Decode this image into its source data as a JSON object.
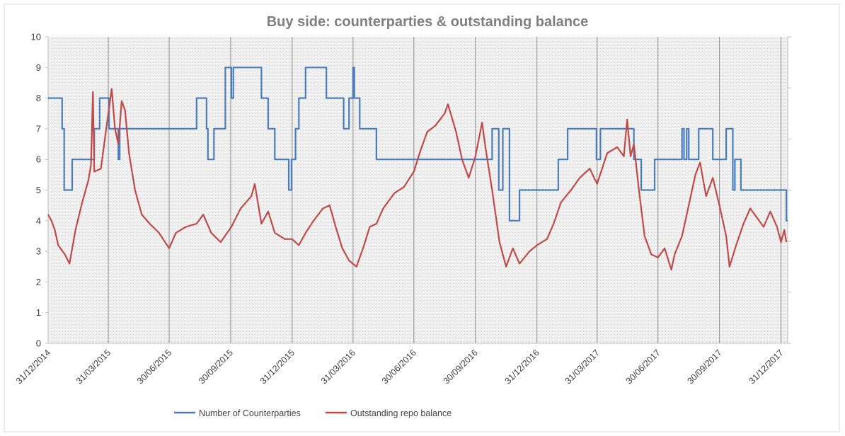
{
  "chart_data": {
    "type": "line",
    "title": "Buy side: counterparties & outstanding balance",
    "xlabel": "",
    "ylabel": "",
    "ylim": [
      0,
      10
    ],
    "yticks": [
      "0",
      "1",
      "2",
      "3",
      "4",
      "5",
      "6",
      "7",
      "8",
      "9",
      "10"
    ],
    "xticks": [
      "31/12/2014",
      "31/03/2015",
      "30/06/2015",
      "30/09/2015",
      "31/12/2015",
      "31/03/2016",
      "30/06/2016",
      "30/09/2016",
      "31/12/2016",
      "31/03/2017",
      "30/06/2017",
      "30/09/2017",
      "31/12/2017"
    ],
    "xlim": [
      "31/12/2014",
      "10/01/2018"
    ],
    "grid": "vertical lines at quarter ends",
    "legend_position": "bottom",
    "colors": {
      "counterparties": "#4a7ebb",
      "balance": "#be4b48",
      "plot_background": "#f2f2f2",
      "gridline": "#8c8c8c"
    },
    "series": [
      {
        "name": "Number of Counterparties",
        "color": "#4a7ebb",
        "step": true,
        "points": [
          [
            "31/12/2014",
            8
          ],
          [
            "21/01/2015",
            7
          ],
          [
            "24/01/2015",
            5
          ],
          [
            "05/02/2015",
            6
          ],
          [
            "10/03/2015",
            7
          ],
          [
            "18/03/2015",
            8
          ],
          [
            "01/04/2015",
            7
          ],
          [
            "15/04/2015",
            6
          ],
          [
            "17/04/2015",
            7
          ],
          [
            "10/08/2015",
            8
          ],
          [
            "25/08/2015",
            7
          ],
          [
            "27/08/2015",
            6
          ],
          [
            "05/09/2015",
            7
          ],
          [
            "22/09/2015",
            9
          ],
          [
            "01/10/2015",
            8
          ],
          [
            "04/10/2015",
            9
          ],
          [
            "15/11/2015",
            8
          ],
          [
            "25/11/2015",
            7
          ],
          [
            "05/12/2015",
            6
          ],
          [
            "26/12/2015",
            5
          ],
          [
            "30/12/2015",
            6
          ],
          [
            "05/01/2016",
            7
          ],
          [
            "10/01/2016",
            8
          ],
          [
            "20/01/2016",
            9
          ],
          [
            "20/02/2016",
            8
          ],
          [
            "17/03/2016",
            7
          ],
          [
            "25/03/2016",
            8
          ],
          [
            "31/03/2016",
            9
          ],
          [
            "02/04/2016",
            8
          ],
          [
            "10/04/2016",
            7
          ],
          [
            "05/05/2016",
            6
          ],
          [
            "01/10/2016",
            6
          ],
          [
            "25/10/2016",
            7
          ],
          [
            "04/11/2016",
            5
          ],
          [
            "10/11/2016",
            7
          ],
          [
            "20/11/2016",
            4
          ],
          [
            "05/12/2016",
            5
          ],
          [
            "01/02/2017",
            6
          ],
          [
            "15/02/2017",
            7
          ],
          [
            "30/03/2017",
            6
          ],
          [
            "05/04/2017",
            7
          ],
          [
            "25/05/2017",
            6
          ],
          [
            "05/06/2017",
            5
          ],
          [
            "25/06/2017",
            6
          ],
          [
            "05/08/2017",
            7
          ],
          [
            "08/08/2017",
            6
          ],
          [
            "12/08/2017",
            7
          ],
          [
            "15/08/2017",
            6
          ],
          [
            "30/08/2017",
            7
          ],
          [
            "20/09/2017",
            6
          ],
          [
            "10/10/2017",
            7
          ],
          [
            "20/10/2017",
            5
          ],
          [
            "23/10/2017",
            6
          ],
          [
            "01/11/2017",
            5
          ],
          [
            "08/01/2018",
            4
          ],
          [
            "10/01/2018",
            4
          ]
        ]
      },
      {
        "name": "Outstanding repo balance",
        "color": "#be4b48",
        "step": false,
        "points": [
          [
            "31/12/2014",
            4.2
          ],
          [
            "05/01/2015",
            4.0
          ],
          [
            "10/01/2015",
            3.7
          ],
          [
            "15/01/2015",
            3.2
          ],
          [
            "25/01/2015",
            2.9
          ],
          [
            "01/02/2015",
            2.6
          ],
          [
            "10/02/2015",
            3.7
          ],
          [
            "20/02/2015",
            4.6
          ],
          [
            "01/03/2015",
            5.3
          ],
          [
            "05/03/2015",
            5.8
          ],
          [
            "08/03/2015",
            8.2
          ],
          [
            "10/03/2015",
            5.6
          ],
          [
            "20/03/2015",
            5.7
          ],
          [
            "31/03/2015",
            7.5
          ],
          [
            "05/04/2015",
            8.3
          ],
          [
            "10/04/2015",
            7.0
          ],
          [
            "15/04/2015",
            6.5
          ],
          [
            "20/04/2015",
            7.9
          ],
          [
            "25/04/2015",
            7.6
          ],
          [
            "01/05/2015",
            6.2
          ],
          [
            "10/05/2015",
            5.0
          ],
          [
            "20/05/2015",
            4.2
          ],
          [
            "01/06/2015",
            3.9
          ],
          [
            "15/06/2015",
            3.6
          ],
          [
            "30/06/2015",
            3.1
          ],
          [
            "10/07/2015",
            3.6
          ],
          [
            "25/07/2015",
            3.8
          ],
          [
            "10/08/2015",
            3.9
          ],
          [
            "20/08/2015",
            4.2
          ],
          [
            "01/09/2015",
            3.6
          ],
          [
            "15/09/2015",
            3.3
          ],
          [
            "01/10/2015",
            3.8
          ],
          [
            "15/10/2015",
            4.4
          ],
          [
            "31/10/2015",
            4.8
          ],
          [
            "05/11/2015",
            5.2
          ],
          [
            "15/11/2015",
            3.9
          ],
          [
            "25/11/2015",
            4.3
          ],
          [
            "05/12/2015",
            3.6
          ],
          [
            "20/12/2015",
            3.4
          ],
          [
            "31/12/2015",
            3.4
          ],
          [
            "10/01/2016",
            3.2
          ],
          [
            "20/01/2016",
            3.6
          ],
          [
            "01/02/2016",
            4.0
          ],
          [
            "15/02/2016",
            4.4
          ],
          [
            "25/02/2016",
            4.5
          ],
          [
            "05/03/2016",
            3.8
          ],
          [
            "15/03/2016",
            3.1
          ],
          [
            "25/03/2016",
            2.7
          ],
          [
            "05/04/2016",
            2.5
          ],
          [
            "15/04/2016",
            3.1
          ],
          [
            "25/04/2016",
            3.8
          ],
          [
            "05/05/2016",
            3.9
          ],
          [
            "15/05/2016",
            4.4
          ],
          [
            "01/06/2016",
            4.9
          ],
          [
            "15/06/2016",
            5.1
          ],
          [
            "30/06/2016",
            5.6
          ],
          [
            "10/07/2016",
            6.3
          ],
          [
            "20/07/2016",
            6.9
          ],
          [
            "01/08/2016",
            7.1
          ],
          [
            "15/08/2016",
            7.5
          ],
          [
            "20/08/2016",
            7.8
          ],
          [
            "01/09/2016",
            6.9
          ],
          [
            "10/09/2016",
            6.0
          ],
          [
            "20/09/2016",
            5.4
          ],
          [
            "30/09/2016",
            6.1
          ],
          [
            "10/10/2016",
            7.2
          ],
          [
            "15/10/2016",
            6.4
          ],
          [
            "25/10/2016",
            5.0
          ],
          [
            "05/11/2016",
            3.3
          ],
          [
            "15/11/2016",
            2.5
          ],
          [
            "25/11/2016",
            3.1
          ],
          [
            "05/12/2016",
            2.6
          ],
          [
            "20/12/2016",
            3.0
          ],
          [
            "31/12/2016",
            3.2
          ],
          [
            "15/01/2017",
            3.4
          ],
          [
            "25/01/2017",
            3.9
          ],
          [
            "05/02/2017",
            4.6
          ],
          [
            "20/02/2017",
            5.0
          ],
          [
            "05/03/2017",
            5.4
          ],
          [
            "20/03/2017",
            5.7
          ],
          [
            "31/03/2017",
            5.2
          ],
          [
            "15/04/2017",
            6.2
          ],
          [
            "30/04/2017",
            6.4
          ],
          [
            "10/05/2017",
            6.1
          ],
          [
            "15/05/2017",
            7.3
          ],
          [
            "20/05/2017",
            6.1
          ],
          [
            "25/05/2017",
            6.5
          ],
          [
            "01/06/2017",
            5.1
          ],
          [
            "10/06/2017",
            3.5
          ],
          [
            "20/06/2017",
            2.9
          ],
          [
            "30/06/2017",
            2.8
          ],
          [
            "10/07/2017",
            3.1
          ],
          [
            "20/07/2017",
            2.4
          ],
          [
            "25/07/2017",
            2.9
          ],
          [
            "05/08/2017",
            3.5
          ],
          [
            "15/08/2017",
            4.5
          ],
          [
            "25/08/2017",
            5.5
          ],
          [
            "01/09/2017",
            5.9
          ],
          [
            "10/09/2017",
            4.8
          ],
          [
            "20/09/2017",
            5.4
          ],
          [
            "30/09/2017",
            4.5
          ],
          [
            "10/10/2017",
            3.5
          ],
          [
            "15/10/2017",
            2.5
          ],
          [
            "25/10/2017",
            3.2
          ],
          [
            "05/11/2017",
            3.9
          ],
          [
            "15/11/2017",
            4.4
          ],
          [
            "25/11/2017",
            4.1
          ],
          [
            "05/12/2017",
            3.8
          ],
          [
            "15/12/2017",
            4.3
          ],
          [
            "25/12/2017",
            3.8
          ],
          [
            "31/12/2017",
            3.3
          ],
          [
            "05/01/2018",
            3.7
          ],
          [
            "08/01/2018",
            3.3
          ]
        ]
      }
    ]
  }
}
